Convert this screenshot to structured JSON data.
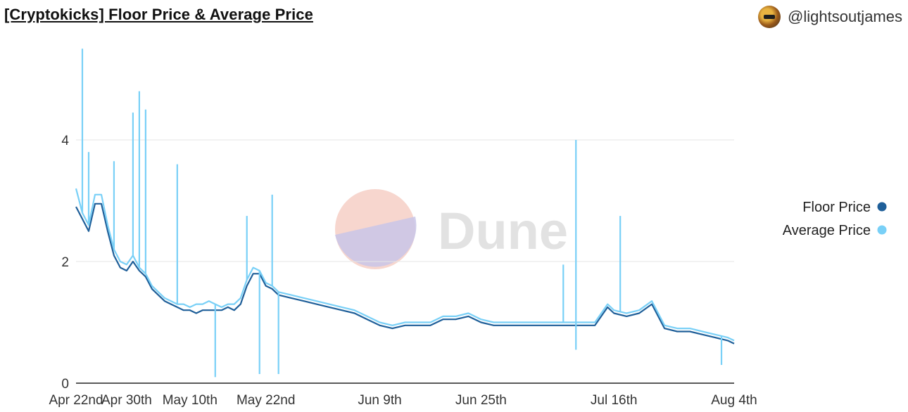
{
  "header": {
    "title": "[Cryptokicks] Floor Price & Average Price",
    "author": "@lightsoutjames"
  },
  "watermark": {
    "text": "Dune"
  },
  "chart_data": {
    "type": "line",
    "xlabel": "",
    "ylabel": "",
    "x_ticks": [
      "Apr 22nd",
      "Apr 30th",
      "May 10th",
      "May 22nd",
      "Jun 9th",
      "Jun 25th",
      "Jul 16th",
      "Aug 4th"
    ],
    "y_ticks": [
      "0",
      "2",
      "4"
    ],
    "ylim": [
      0,
      5.6
    ],
    "grid": true,
    "legend_position": "right",
    "series": [
      {
        "name": "Floor Price",
        "color": "#1f5f99",
        "points": [
          [
            "Apr 22nd",
            2.9
          ],
          [
            "Apr 23rd",
            2.7
          ],
          [
            "Apr 24th",
            2.5
          ],
          [
            "Apr 25th",
            2.95
          ],
          [
            "Apr 26th",
            2.95
          ],
          [
            "Apr 27th",
            2.5
          ],
          [
            "Apr 28th",
            2.1
          ],
          [
            "Apr 29th",
            1.9
          ],
          [
            "Apr 30th",
            1.85
          ],
          [
            "May 1st",
            2.0
          ],
          [
            "May 2nd",
            1.85
          ],
          [
            "May 3rd",
            1.75
          ],
          [
            "May 4th",
            1.55
          ],
          [
            "May 5th",
            1.45
          ],
          [
            "May 6th",
            1.35
          ],
          [
            "May 7th",
            1.3
          ],
          [
            "May 8th",
            1.25
          ],
          [
            "May 9th",
            1.2
          ],
          [
            "May 10th",
            1.2
          ],
          [
            "May 11th",
            1.15
          ],
          [
            "May 12th",
            1.2
          ],
          [
            "May 13th",
            1.2
          ],
          [
            "May 14th",
            1.2
          ],
          [
            "May 15th",
            1.2
          ],
          [
            "May 16th",
            1.25
          ],
          [
            "May 17th",
            1.2
          ],
          [
            "May 18th",
            1.3
          ],
          [
            "May 19th",
            1.6
          ],
          [
            "May 20th",
            1.8
          ],
          [
            "May 21st",
            1.8
          ],
          [
            "May 22nd",
            1.6
          ],
          [
            "May 23rd",
            1.55
          ],
          [
            "May 24th",
            1.45
          ],
          [
            "May 26th",
            1.4
          ],
          [
            "May 28th",
            1.35
          ],
          [
            "May 30th",
            1.3
          ],
          [
            "Jun 1st",
            1.25
          ],
          [
            "Jun 3rd",
            1.2
          ],
          [
            "Jun 5th",
            1.15
          ],
          [
            "Jun 7th",
            1.05
          ],
          [
            "Jun 9th",
            0.95
          ],
          [
            "Jun 11th",
            0.9
          ],
          [
            "Jun 13th",
            0.95
          ],
          [
            "Jun 15th",
            0.95
          ],
          [
            "Jun 17th",
            0.95
          ],
          [
            "Jun 19th",
            1.05
          ],
          [
            "Jun 21st",
            1.05
          ],
          [
            "Jun 23rd",
            1.1
          ],
          [
            "Jun 25th",
            1.0
          ],
          [
            "Jun 27th",
            0.95
          ],
          [
            "Jun 29th",
            0.95
          ],
          [
            "Jul 1st",
            0.95
          ],
          [
            "Jul 3rd",
            0.95
          ],
          [
            "Jul 5th",
            0.95
          ],
          [
            "Jul 7th",
            0.95
          ],
          [
            "Jul 9th",
            0.95
          ],
          [
            "Jul 11th",
            0.95
          ],
          [
            "Jul 13th",
            0.95
          ],
          [
            "Jul 15th",
            1.25
          ],
          [
            "Jul 16th",
            1.15
          ],
          [
            "Jul 18th",
            1.1
          ],
          [
            "Jul 20th",
            1.15
          ],
          [
            "Jul 22nd",
            1.3
          ],
          [
            "Jul 24th",
            0.9
          ],
          [
            "Jul 26th",
            0.85
          ],
          [
            "Jul 28th",
            0.85
          ],
          [
            "Jul 30th",
            0.8
          ],
          [
            "Aug 1st",
            0.75
          ],
          [
            "Aug 3rd",
            0.7
          ],
          [
            "Aug 4th",
            0.65
          ]
        ]
      },
      {
        "name": "Average Price",
        "color": "#79d0f7",
        "points": [
          [
            "Apr 22nd",
            3.2
          ],
          [
            "Apr 23rd",
            2.8
          ],
          [
            "Apr 24th",
            2.6
          ],
          [
            "Apr 25th",
            3.1
          ],
          [
            "Apr 26th",
            3.1
          ],
          [
            "Apr 27th",
            2.6
          ],
          [
            "Apr 28th",
            2.2
          ],
          [
            "Apr 29th",
            2.0
          ],
          [
            "Apr 30th",
            1.95
          ],
          [
            "May 1st",
            2.1
          ],
          [
            "May 2nd",
            1.9
          ],
          [
            "May 3rd",
            1.8
          ],
          [
            "May 4th",
            1.6
          ],
          [
            "May 5th",
            1.5
          ],
          [
            "May 6th",
            1.4
          ],
          [
            "May 7th",
            1.35
          ],
          [
            "May 8th",
            1.3
          ],
          [
            "May 9th",
            1.3
          ],
          [
            "May 10th",
            1.25
          ],
          [
            "May 11th",
            1.3
          ],
          [
            "May 12th",
            1.3
          ],
          [
            "May 13th",
            1.35
          ],
          [
            "May 14th",
            1.3
          ],
          [
            "May 15th",
            1.25
          ],
          [
            "May 16th",
            1.3
          ],
          [
            "May 17th",
            1.3
          ],
          [
            "May 18th",
            1.4
          ],
          [
            "May 19th",
            1.7
          ],
          [
            "May 20th",
            1.9
          ],
          [
            "May 21st",
            1.85
          ],
          [
            "May 22nd",
            1.65
          ],
          [
            "May 23rd",
            1.6
          ],
          [
            "May 24th",
            1.5
          ],
          [
            "May 26th",
            1.45
          ],
          [
            "May 28th",
            1.4
          ],
          [
            "May 30th",
            1.35
          ],
          [
            "Jun 1st",
            1.3
          ],
          [
            "Jun 3rd",
            1.25
          ],
          [
            "Jun 5th",
            1.2
          ],
          [
            "Jun 7th",
            1.1
          ],
          [
            "Jun 9th",
            1.0
          ],
          [
            "Jun 11th",
            0.95
          ],
          [
            "Jun 13th",
            1.0
          ],
          [
            "Jun 15th",
            1.0
          ],
          [
            "Jun 17th",
            1.0
          ],
          [
            "Jun 19th",
            1.1
          ],
          [
            "Jun 21st",
            1.1
          ],
          [
            "Jun 23rd",
            1.15
          ],
          [
            "Jun 25th",
            1.05
          ],
          [
            "Jun 27th",
            1.0
          ],
          [
            "Jun 29th",
            1.0
          ],
          [
            "Jul 1st",
            1.0
          ],
          [
            "Jul 3rd",
            1.0
          ],
          [
            "Jul 5th",
            1.0
          ],
          [
            "Jul 7th",
            1.0
          ],
          [
            "Jul 9th",
            1.0
          ],
          [
            "Jul 11th",
            1.0
          ],
          [
            "Jul 13th",
            1.0
          ],
          [
            "Jul 15th",
            1.3
          ],
          [
            "Jul 16th",
            1.2
          ],
          [
            "Jul 18th",
            1.15
          ],
          [
            "Jul 20th",
            1.2
          ],
          [
            "Jul 22nd",
            1.35
          ],
          [
            "Jul 24th",
            0.95
          ],
          [
            "Jul 26th",
            0.9
          ],
          [
            "Jul 28th",
            0.9
          ],
          [
            "Jul 30th",
            0.85
          ],
          [
            "Aug 1st",
            0.8
          ],
          [
            "Aug 3rd",
            0.75
          ],
          [
            "Aug 4th",
            0.7
          ]
        ],
        "spikes": [
          [
            "Apr 23rd",
            5.5
          ],
          [
            "Apr 24th",
            3.8
          ],
          [
            "Apr 28th",
            3.65
          ],
          [
            "May 1st",
            4.45
          ],
          [
            "May 2nd",
            4.8
          ],
          [
            "May 3rd",
            4.5
          ],
          [
            "May 8th",
            3.6
          ],
          [
            "May 19th",
            2.75
          ],
          [
            "May 23rd",
            3.1
          ],
          [
            "Jul 10th",
            4.0
          ],
          [
            "Jul 17th",
            2.75
          ],
          [
            "Jul 8th",
            1.95
          ]
        ],
        "dips": [
          [
            "May 14th",
            0.1
          ],
          [
            "May 21st",
            0.15
          ],
          [
            "May 24th",
            0.15
          ],
          [
            "Jul 10th",
            0.55
          ],
          [
            "Aug 2nd",
            0.3
          ]
        ]
      }
    ]
  }
}
